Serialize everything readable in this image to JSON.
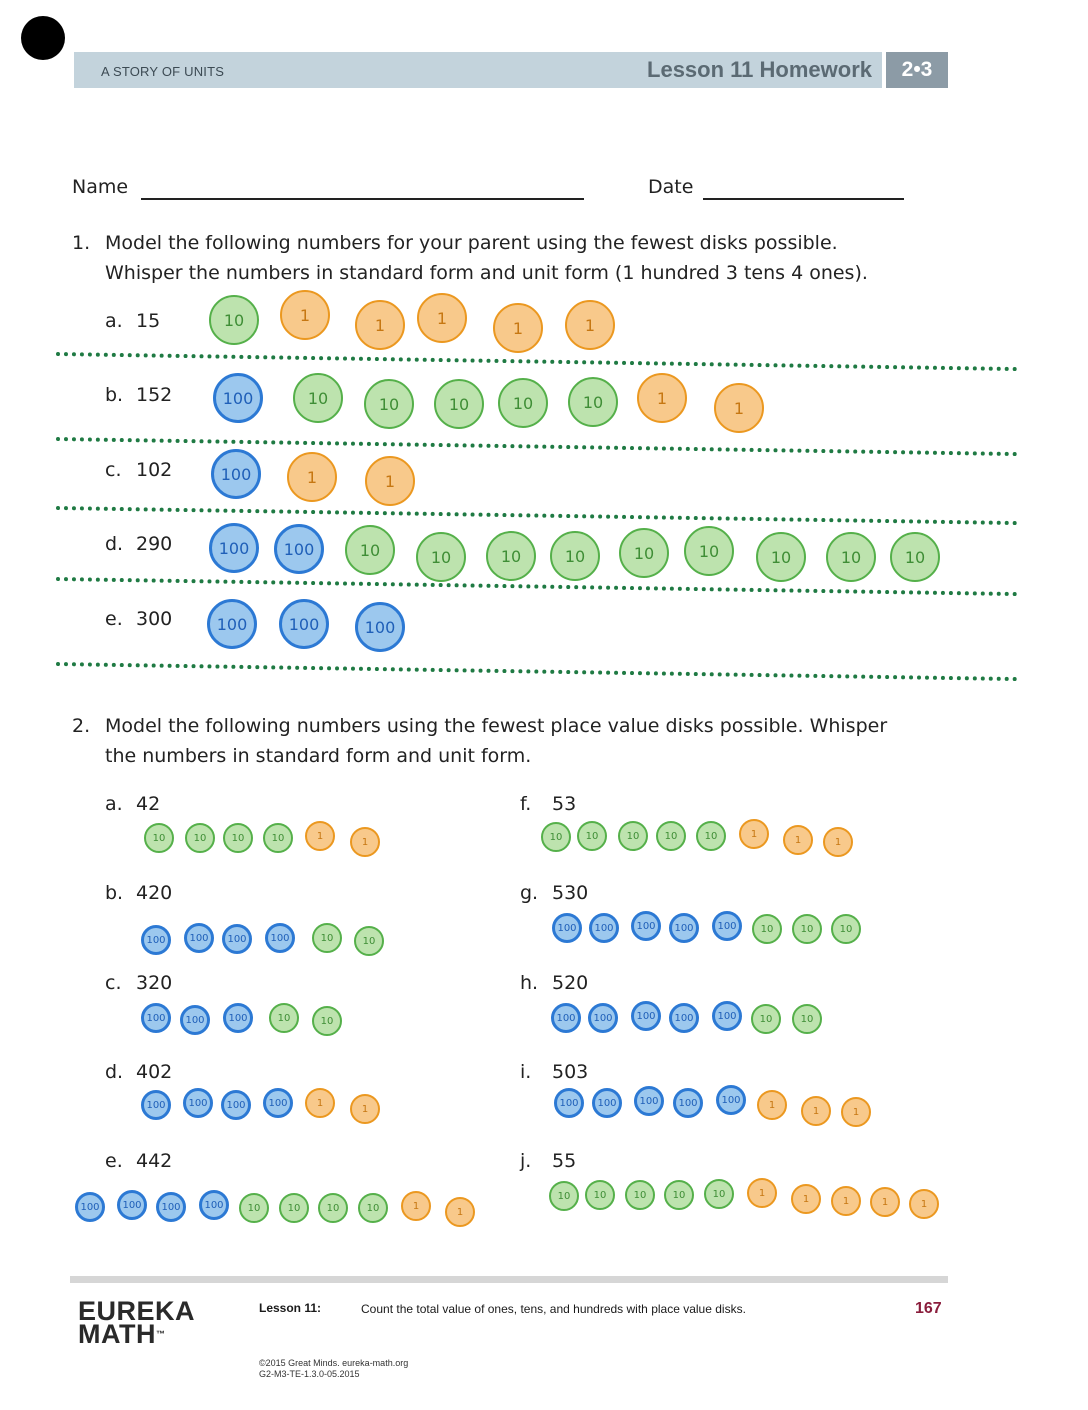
{
  "header": {
    "series": "A STORY OF UNITS",
    "lesson_title": "Lesson 11 Homework",
    "grade_module": "2•3"
  },
  "form": {
    "name_label": "Name",
    "date_label": "Date"
  },
  "problem1": {
    "number": "1.",
    "line1": "Model the following numbers for your parent using the fewest disks possible.",
    "line2": "Whisper the numbers in standard form and unit form (1 hundred 3 tens 4 ones).",
    "items": [
      {
        "letter": "a.",
        "value": "15"
      },
      {
        "letter": "b.",
        "value": "152"
      },
      {
        "letter": "c.",
        "value": "102"
      },
      {
        "letter": "d.",
        "value": "290"
      },
      {
        "letter": "e.",
        "value": "300"
      }
    ]
  },
  "problem2": {
    "number": "2.",
    "line1": "Model the following numbers using the fewest place value disks possible.  Whisper",
    "line2": "the numbers in standard form and unit form.",
    "items": [
      {
        "letter": "a.",
        "value": "42"
      },
      {
        "letter": "b.",
        "value": "420"
      },
      {
        "letter": "c.",
        "value": "320"
      },
      {
        "letter": "d.",
        "value": "402"
      },
      {
        "letter": "e.",
        "value": "442"
      },
      {
        "letter": "f.",
        "value": "53"
      },
      {
        "letter": "g.",
        "value": "530"
      },
      {
        "letter": "h.",
        "value": "520"
      },
      {
        "letter": "i.",
        "value": "503"
      },
      {
        "letter": "j.",
        "value": "55"
      }
    ]
  },
  "disk_labels": {
    "hundred": "100",
    "ten": "10",
    "one": "1"
  },
  "disk_colors": {
    "hundred": "#9cc8ee",
    "ten": "#bde3ae",
    "one": "#f8c98b"
  },
  "footer": {
    "brand_line1": "EUREKA",
    "brand_line2": "MATH",
    "trademark": "™",
    "lesson_label": "Lesson 11:",
    "lesson_desc": "Count the total value of ones, tens, and hundreds with place value disks.",
    "page_number": "167",
    "copyright": "©2015 Great Minds. eureka-math.org",
    "code": "G2-M3-TE-1.3.0-05.2015"
  }
}
